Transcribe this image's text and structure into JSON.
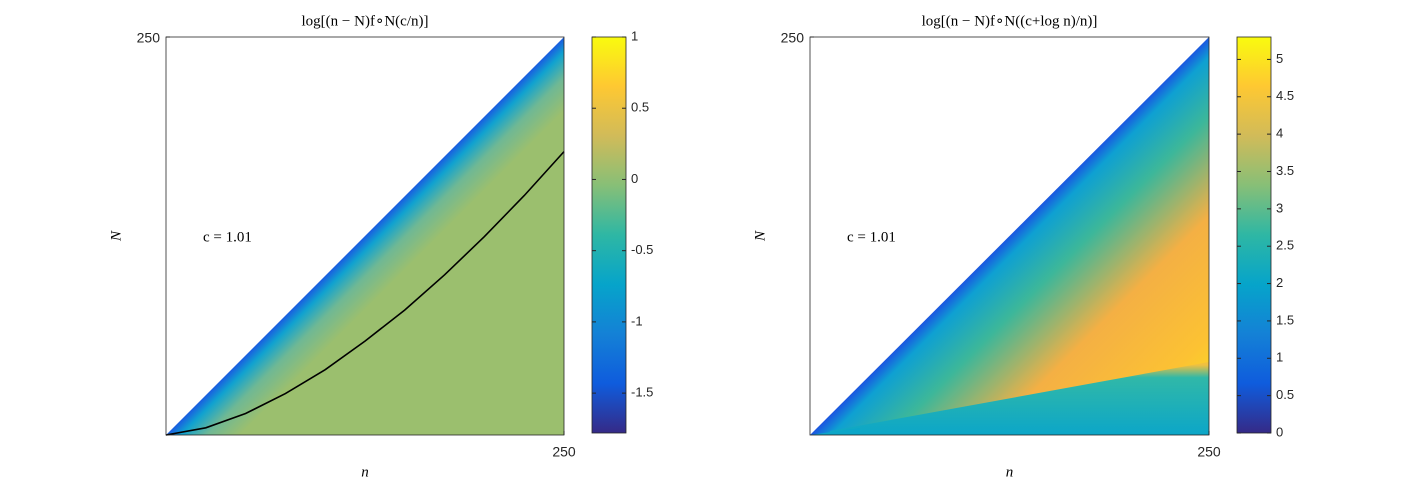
{
  "chart_data": [
    {
      "type": "heatmap",
      "title": "log[(n − N)f∘N(c/n)]",
      "xlabel": "n",
      "ylabel": "N",
      "annotation": "c = 1.01",
      "xlim": [
        0,
        250
      ],
      "xticks": [
        250
      ],
      "ylim": [
        0,
        250
      ],
      "yticks": [
        250
      ],
      "clim": [
        -1.78,
        1
      ],
      "cticks": [
        -1.5,
        -1,
        -0.5,
        0,
        0.5,
        1
      ],
      "colormap": "parula",
      "series": [
        {
          "color": "#000000",
          "x": [
            0,
            25,
            50,
            75,
            100,
            125,
            150,
            175,
            200,
            225,
            250
          ],
          "values": [
            0,
            4.5,
            13.5,
            26,
            41,
            59,
            78.5,
            100.6,
            124.6,
            150.4,
            178
          ]
        }
      ]
    },
    {
      "type": "heatmap",
      "title": "log[(n − N)f∘N((c+log n)/n)]",
      "xlabel": "n",
      "ylabel": "N",
      "annotation": "c = 1.01",
      "xlim": [
        0,
        250
      ],
      "xticks": [
        250
      ],
      "ylim": [
        0,
        250
      ],
      "yticks": [
        250
      ],
      "clim": [
        0,
        5.3
      ],
      "cticks": [
        0,
        0.5,
        1,
        1.5,
        2,
        2.5,
        3,
        3.5,
        4,
        4.5,
        5
      ],
      "colormap": "parula"
    }
  ]
}
